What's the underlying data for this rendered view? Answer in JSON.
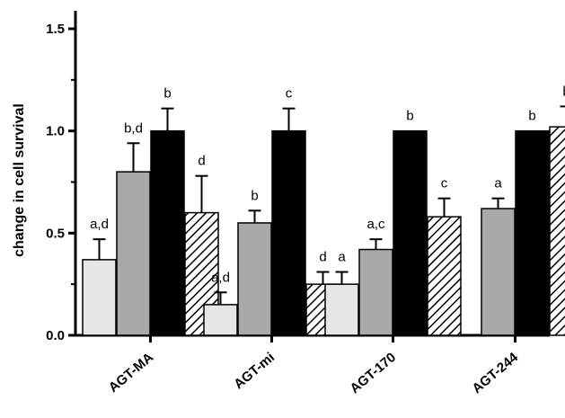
{
  "chart_data": {
    "type": "bar",
    "title": "",
    "xlabel": "",
    "ylabel": "change in cell survival",
    "ylim": [
      0,
      1.6
    ],
    "yticks": [
      "0.0",
      "0.5",
      "1.0",
      "1.5"
    ],
    "ytick_values": [
      0,
      0.5,
      1.0,
      1.5
    ],
    "grid": false,
    "legend": "none",
    "categories": [
      "AGT-MA",
      "AGT-mi",
      "AGT-170",
      "AGT-244"
    ],
    "series": [
      {
        "fill": "light-gray",
        "color": "#e6e6e6",
        "values": [
          0.37,
          0.15,
          0.25,
          null
        ],
        "errors": [
          0.1,
          0.06,
          0.06,
          null
        ],
        "labels": [
          "a,d",
          "a,d",
          "a",
          ""
        ]
      },
      {
        "fill": "gray",
        "color": "#a9a9a9",
        "values": [
          0.8,
          0.55,
          0.42,
          0.62
        ],
        "errors": [
          0.14,
          0.06,
          0.05,
          0.05
        ],
        "labels": [
          "b,d",
          "b",
          "a,c",
          "a"
        ]
      },
      {
        "fill": "black",
        "color": "#000000",
        "values": [
          1.0,
          1.0,
          1.0,
          1.0
        ],
        "errors": [
          0.11,
          0.11,
          0.0,
          0.0
        ],
        "labels": [
          "b",
          "c",
          "b",
          "b"
        ]
      },
      {
        "fill": "diagonal-hatch",
        "color": "#ffffff",
        "values": [
          0.6,
          0.25,
          0.58,
          1.02
        ],
        "errors": [
          0.18,
          0.06,
          0.09,
          0.1
        ],
        "labels": [
          "d",
          "d",
          "c",
          "b"
        ]
      }
    ]
  }
}
